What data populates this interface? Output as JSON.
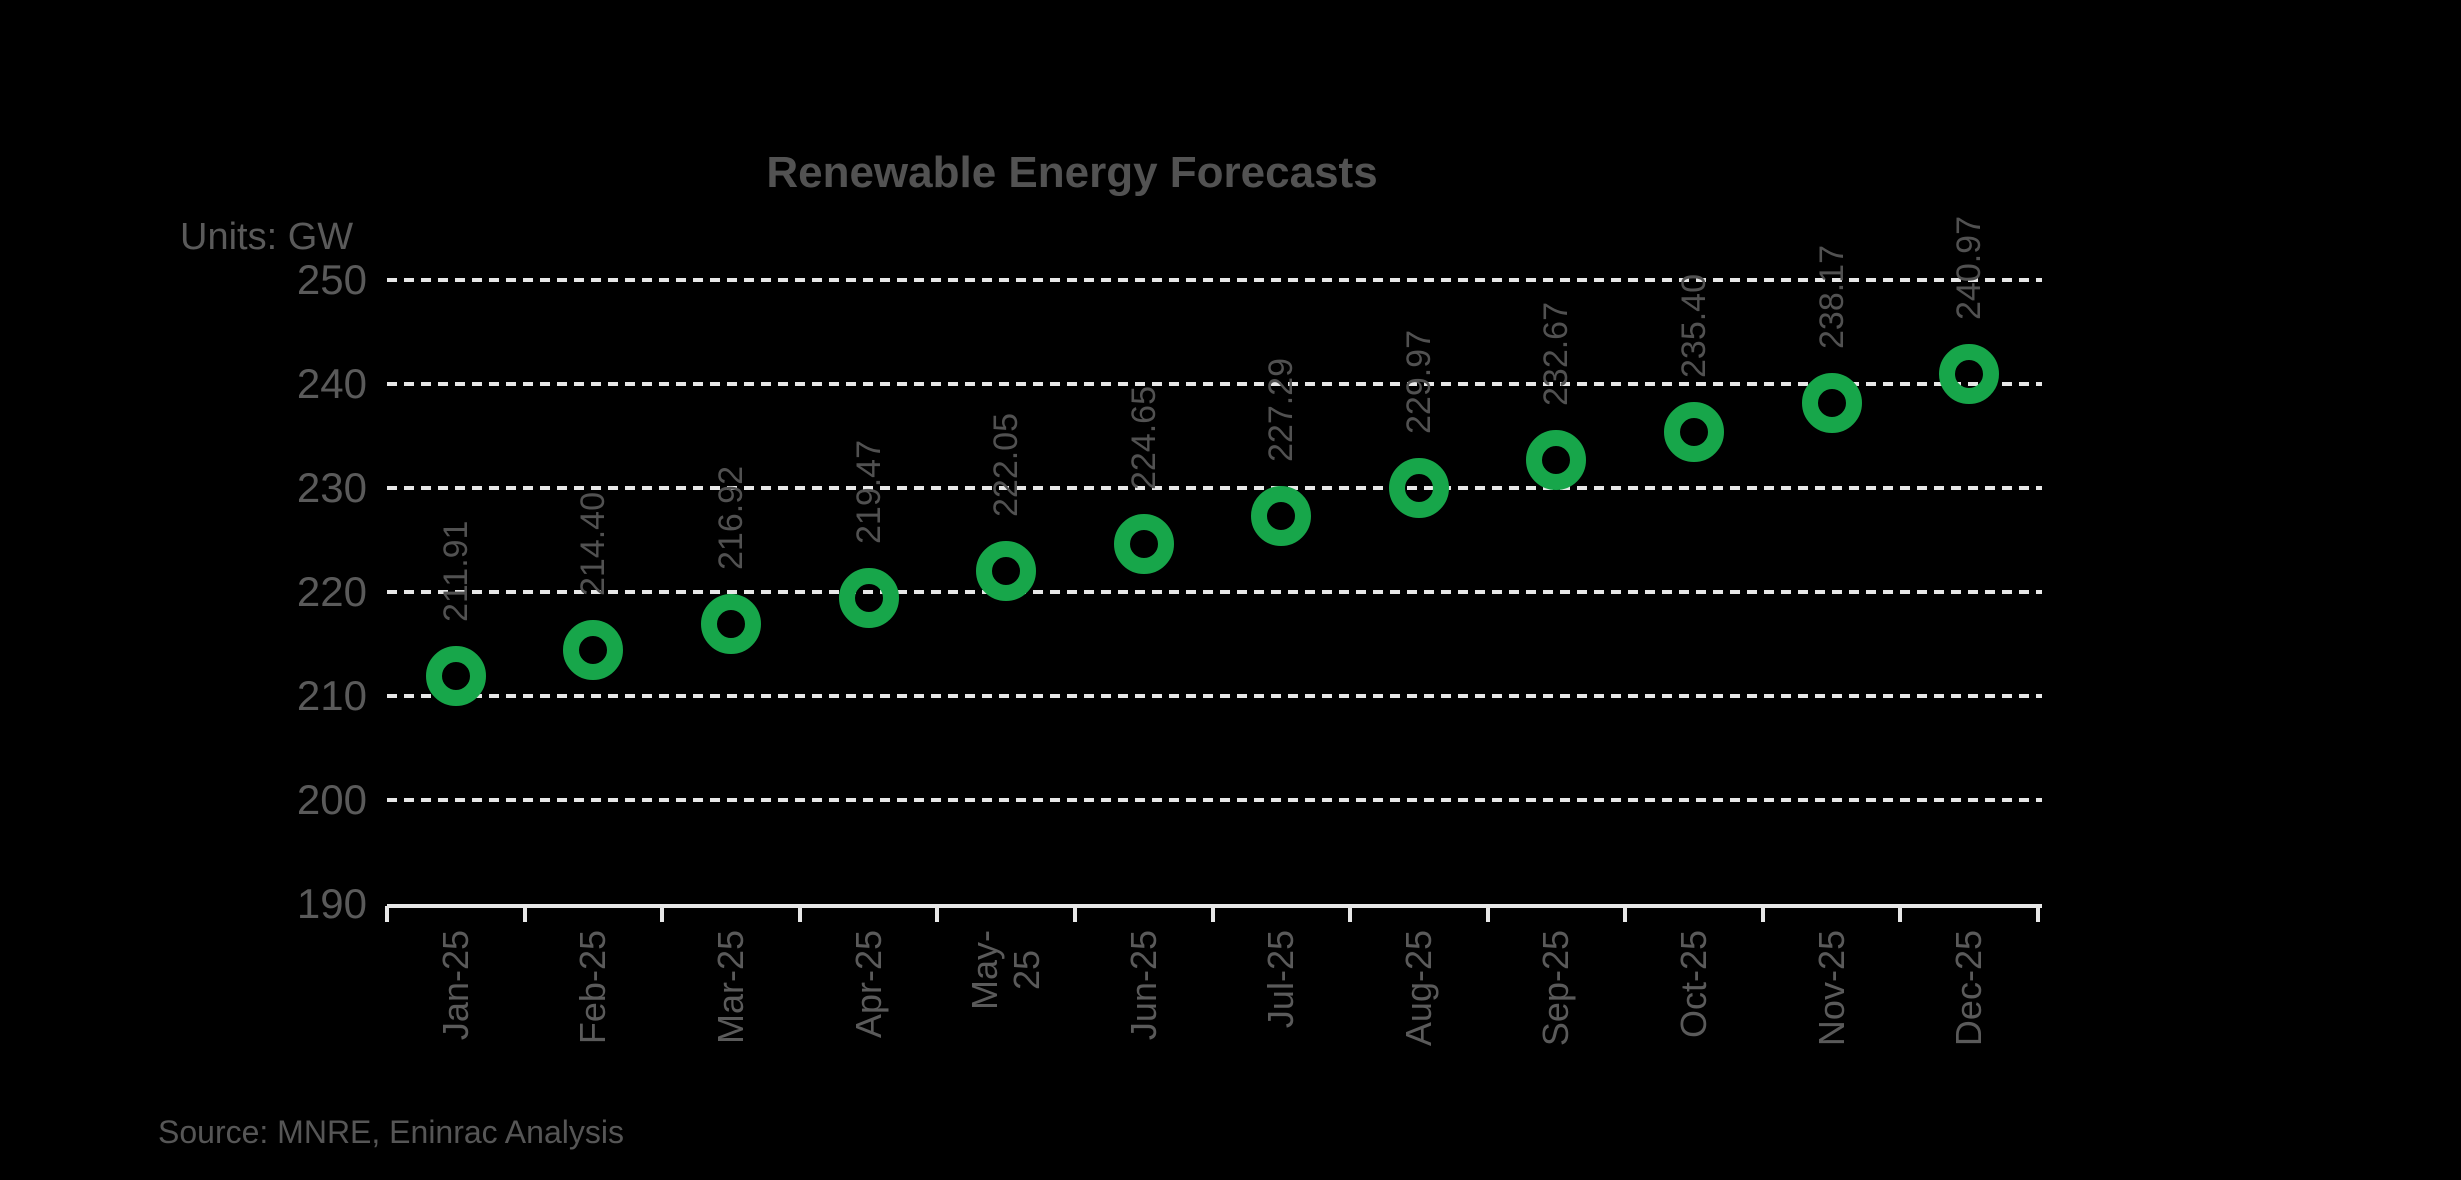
{
  "title": "Renewable Energy Forecasts",
  "units_label": "Units: GW",
  "source_note": "Source: MNRE, Eninrac Analysis",
  "colors": {
    "background": "#000000",
    "marker_green": "#17A64A",
    "gridline": "#E7E7E7",
    "text_gray": "#5A5A5A",
    "title_gray": "#525252"
  },
  "chart_data": {
    "type": "scatter",
    "title": "Renewable Energy Forecasts",
    "ylabel": "Units: GW",
    "categories": [
      "Jan-25",
      "Feb-25",
      "Mar-25",
      "Apr-25",
      "May-25",
      "Jun-25",
      "Jul-25",
      "Aug-25",
      "Sep-25",
      "Oct-25",
      "Nov-25",
      "Dec-25"
    ],
    "values": [
      211.91,
      214.4,
      216.92,
      219.47,
      222.05,
      224.65,
      227.29,
      229.97,
      232.67,
      235.4,
      238.17,
      240.97
    ],
    "data_label_format": "2-decimals, rotated 90deg above marker",
    "marker_style": "green ring (donut), hollow center",
    "yticks": [
      190,
      200,
      210,
      220,
      230,
      240,
      250
    ],
    "ylim": [
      190,
      250
    ],
    "grid": "horizontal dotted lines, white on black",
    "legend": "none",
    "wrapped_category_label": {
      "index": 4,
      "lines": [
        "May-",
        "25"
      ]
    }
  }
}
